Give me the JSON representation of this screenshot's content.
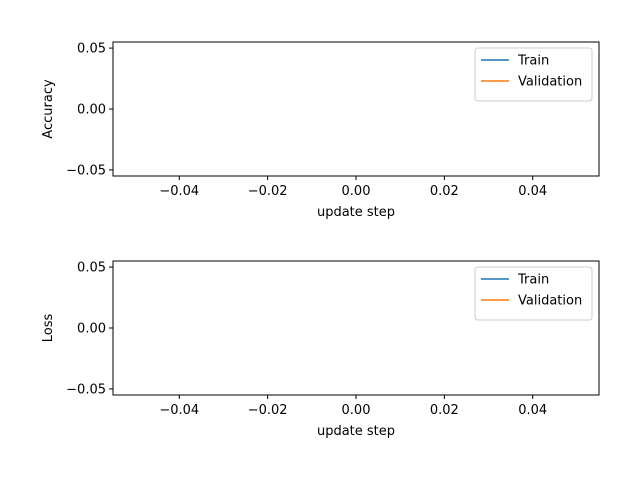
{
  "chart_data": [
    {
      "type": "line",
      "xlabel": "update step",
      "ylabel": "Accuracy",
      "xlim": [
        -0.055,
        0.055
      ],
      "ylim": [
        -0.055,
        0.055
      ],
      "xticks": [
        -0.04,
        -0.02,
        0.0,
        0.02,
        0.04
      ],
      "xtick_labels": [
        "−0.04",
        "−0.02",
        "0.00",
        "0.02",
        "0.04"
      ],
      "yticks": [
        -0.05,
        0.0,
        0.05
      ],
      "ytick_labels": [
        "−0.05",
        "0.00",
        "0.05"
      ],
      "series": [
        {
          "name": "Train",
          "color": "#1f77b4",
          "values": []
        },
        {
          "name": "Validation",
          "color": "#ff7f0e",
          "values": []
        }
      ],
      "legend": "top-right",
      "grid": false
    },
    {
      "type": "line",
      "xlabel": "update step",
      "ylabel": "Loss",
      "xlim": [
        -0.055,
        0.055
      ],
      "ylim": [
        -0.055,
        0.055
      ],
      "xticks": [
        -0.04,
        -0.02,
        0.0,
        0.02,
        0.04
      ],
      "xtick_labels": [
        "−0.04",
        "−0.02",
        "0.00",
        "0.02",
        "0.04"
      ],
      "yticks": [
        -0.05,
        0.0,
        0.05
      ],
      "ytick_labels": [
        "−0.05",
        "0.00",
        "0.05"
      ],
      "series": [
        {
          "name": "Train",
          "color": "#1f77b4",
          "values": []
        },
        {
          "name": "Validation",
          "color": "#ff7f0e",
          "values": []
        }
      ],
      "legend": "top-right",
      "grid": false
    }
  ]
}
